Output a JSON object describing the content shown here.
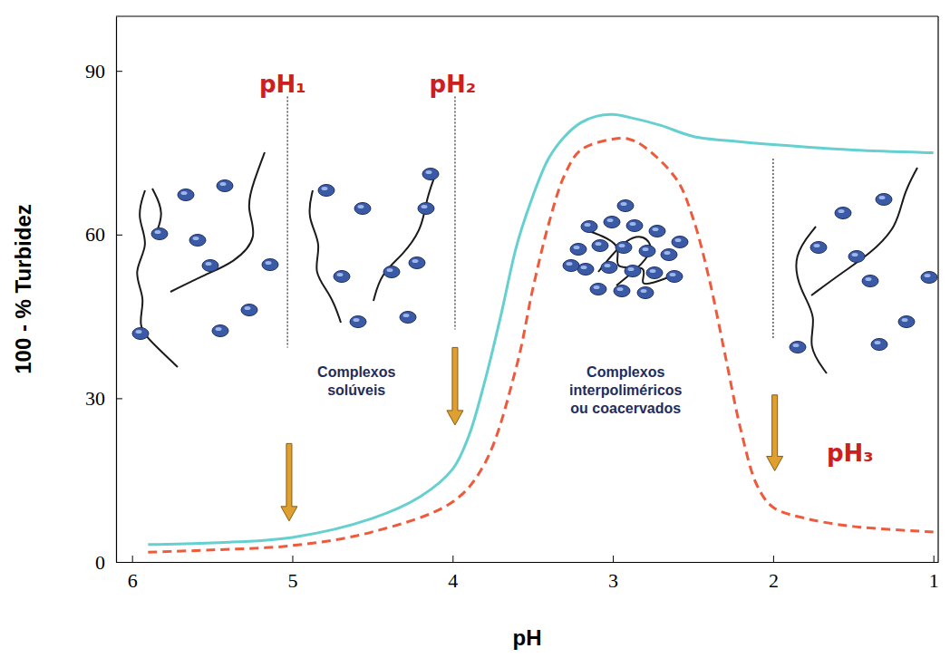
{
  "chart_data": {
    "type": "line",
    "x_label": "pH",
    "y_label": "100 - % Turbidez",
    "xlim": [
      6.1,
      0.97
    ],
    "xticks": [
      6,
      5,
      4,
      3,
      2,
      1
    ],
    "ylim": [
      0,
      100
    ],
    "yticks": [
      0,
      30,
      60,
      90
    ],
    "grid": false,
    "series": [
      {
        "color": "#66d0d0",
        "line_style": "solid",
        "x": [
          5.9,
          5.5,
          5.0,
          4.5,
          4.2,
          4.0,
          3.9,
          3.8,
          3.7,
          3.6,
          3.5,
          3.4,
          3.3,
          3.2,
          3.1,
          3.0,
          2.9,
          2.7,
          2.5,
          2.2,
          2.0,
          1.5,
          1.0
        ],
        "values": [
          3.2,
          3.5,
          4.5,
          8,
          12,
          17,
          23,
          33,
          45,
          58,
          67,
          74,
          78,
          80.5,
          81.7,
          82,
          81.5,
          80,
          78,
          77,
          76.5,
          75.5,
          75
        ]
      },
      {
        "color": "#ee5a3c",
        "line_style": "dashed",
        "x": [
          5.9,
          5.5,
          5.0,
          4.5,
          4.0,
          3.8,
          3.6,
          3.5,
          3.4,
          3.3,
          3.2,
          3.0,
          2.9,
          2.8,
          2.6,
          2.5,
          2.4,
          2.3,
          2.2,
          2.1,
          2.0,
          1.8,
          1.5,
          1.0
        ],
        "values": [
          1.8,
          2.2,
          3,
          5.5,
          11,
          18,
          36,
          50,
          62,
          71,
          75.5,
          77.5,
          77.5,
          76,
          70,
          63,
          52,
          38,
          24,
          14,
          10,
          8,
          6.5,
          5.5
        ]
      }
    ],
    "reference_lines": [
      {
        "x": 5.03,
        "y1": 85.3,
        "y2": 39.3,
        "line_style": "dotted"
      },
      {
        "x": 3.985,
        "y1": 85.3,
        "y2": 42.6,
        "line_style": "dotted"
      },
      {
        "x": 2.0,
        "y1": 73.9,
        "y2": 41,
        "line_style": "dotted"
      }
    ],
    "arrows": [
      {
        "x": 5.02,
        "y1": 21.7,
        "y2": 7.5
      },
      {
        "x": 3.985,
        "y1": 39.3,
        "y2": 25.1
      },
      {
        "x": 1.99,
        "y1": 30.6,
        "y2": 16.7
      }
    ],
    "annotations": [
      {
        "text": "pH₁",
        "x": 5.06,
        "y": 86.1,
        "color": "#cc1f1f"
      },
      {
        "text": "pH₂",
        "x": 4.0,
        "y": 86.1,
        "color": "#cc1f1f"
      },
      {
        "text": "pH₃",
        "x": 1.52,
        "y": 18.4,
        "color": "#cc1f1f"
      },
      {
        "text": "Complexos solúveis",
        "x": 4.6,
        "y": 33.9,
        "color": "#1f2d5c"
      },
      {
        "text": "Complexos interpoliméricos ou coacervados",
        "x": 2.92,
        "y": 33.9,
        "color": "#1f2d5c"
      }
    ]
  }
}
